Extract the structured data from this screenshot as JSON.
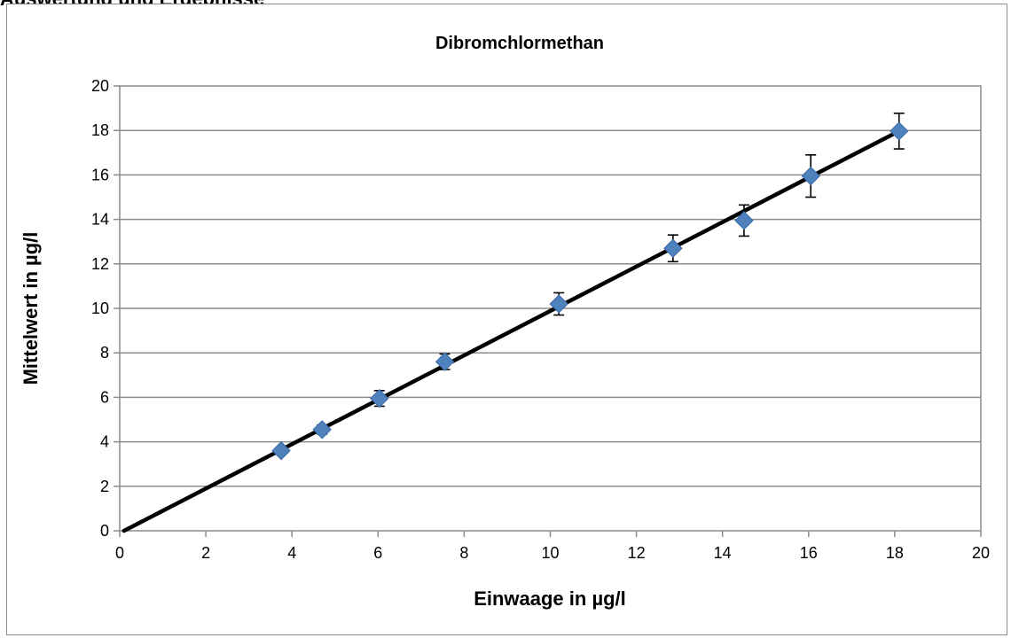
{
  "page": {
    "heading": "Auswertung und Ergebnisse"
  },
  "chart_data": {
    "type": "scatter",
    "title": "Dibromchlormethan",
    "xlabel": "Einwaage in µg/l",
    "ylabel": "Mittelwert in µg/l",
    "xlim": [
      0,
      20
    ],
    "ylim": [
      0,
      20
    ],
    "xticks": [
      0,
      2,
      4,
      6,
      8,
      10,
      12,
      14,
      16,
      18,
      20
    ],
    "yticks": [
      0,
      2,
      4,
      6,
      8,
      10,
      12,
      14,
      16,
      18,
      20
    ],
    "grid": "horizontal",
    "legend": "none",
    "series": [
      {
        "marker": "diamond",
        "color": "#4f81bd",
        "x": [
          3.75,
          4.7,
          6.03,
          7.55,
          10.2,
          12.85,
          14.5,
          16.05,
          18.1
        ],
        "y": [
          3.6,
          4.55,
          5.95,
          7.6,
          10.2,
          12.7,
          13.95,
          15.95,
          17.97
        ],
        "error": [
          0.15,
          0.2,
          0.35,
          0.35,
          0.5,
          0.6,
          0.7,
          0.95,
          0.8
        ]
      }
    ],
    "trendline": {
      "color": "#000000",
      "x": [
        0.1,
        18.1
      ],
      "y": [
        0.0,
        17.97
      ]
    }
  }
}
